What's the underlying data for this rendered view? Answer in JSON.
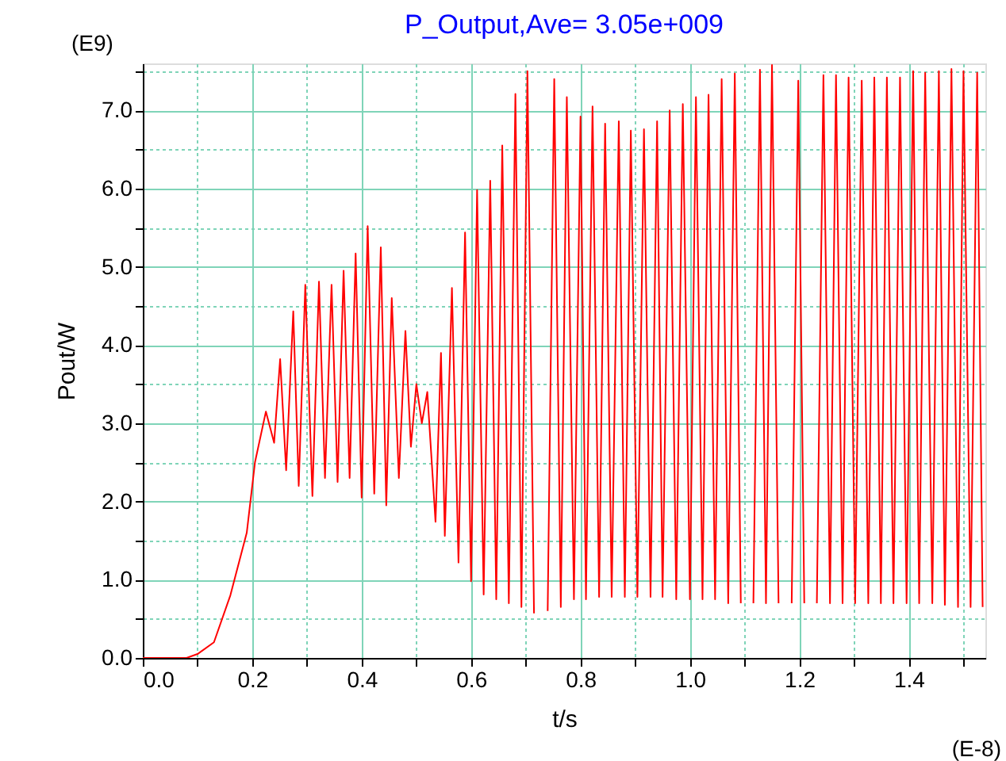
{
  "chart_data": {
    "type": "line",
    "title": "P_Output,Ave= 3.05e+009",
    "xlabel": "t/s",
    "ylabel": "Pout/W",
    "annotations": [
      "(E9)",
      "(E-8)"
    ],
    "xlim": [
      0,
      1.54
    ],
    "ylim": [
      0,
      7.6
    ],
    "xticks": [
      {
        "value": 0,
        "label": "0.0"
      },
      {
        "value": 0.1,
        "label": null
      },
      {
        "value": 0.2,
        "label": "0.2"
      },
      {
        "value": 0.3,
        "label": null
      },
      {
        "value": 0.4,
        "label": "0.4"
      },
      {
        "value": 0.5,
        "label": null
      },
      {
        "value": 0.6,
        "label": "0.6"
      },
      {
        "value": 0.7,
        "label": null
      },
      {
        "value": 0.8,
        "label": "0.8"
      },
      {
        "value": 0.9,
        "label": null
      },
      {
        "value": 1,
        "label": "1.0"
      },
      {
        "value": 1.1,
        "label": null
      },
      {
        "value": 1.2,
        "label": "1.2"
      },
      {
        "value": 1.3,
        "label": null
      },
      {
        "value": 1.4,
        "label": "1.4"
      },
      {
        "value": 1.5,
        "label": null
      }
    ],
    "yticks": [
      {
        "value": 0,
        "label": "0.0"
      },
      {
        "value": 0.5,
        "label": null
      },
      {
        "value": 1,
        "label": "1.0"
      },
      {
        "value": 1.5,
        "label": null
      },
      {
        "value": 2,
        "label": "2.0"
      },
      {
        "value": 2.5,
        "label": null
      },
      {
        "value": 3,
        "label": "3.0"
      },
      {
        "value": 3.5,
        "label": null
      },
      {
        "value": 4,
        "label": "4.0"
      },
      {
        "value": 4.5,
        "label": null
      },
      {
        "value": 5,
        "label": "5.0"
      },
      {
        "value": 5.5,
        "label": null
      },
      {
        "value": 6,
        "label": "6.0"
      },
      {
        "value": 6.5,
        "label": null
      },
      {
        "value": 7,
        "label": "7.0"
      },
      {
        "value": 7.5,
        "label": null
      }
    ],
    "grid": true,
    "legend": false,
    "marker": "none",
    "line_style": "solid",
    "series": [
      {
        "color": "#ff0000",
        "x": [
          0,
          0.08,
          0.1,
          0.13,
          0.16,
          0.19,
          0.205,
          0.225,
          0.24,
          0.251,
          0.262,
          0.275,
          0.285,
          0.297,
          0.31,
          0.322,
          0.333,
          0.345,
          0.356,
          0.367,
          0.378,
          0.389,
          0.4,
          0.411,
          0.423,
          0.435,
          0.445,
          0.455,
          0.468,
          0.48,
          0.49,
          0.5,
          0.51,
          0.52,
          0.535,
          0.545,
          0.552,
          0.565,
          0.577,
          0.589,
          0.6,
          0.611,
          0.623,
          0.635,
          0.646,
          0.657,
          0.669,
          0.681,
          0.692,
          0.703,
          0.715,
          0.727,
          0.74,
          0.752,
          0.764,
          0.775,
          0.788,
          0.8,
          0.81,
          0.822,
          0.834,
          0.845,
          0.857,
          0.87,
          0.881,
          0.892,
          0.904,
          0.916,
          0.928,
          0.94,
          0.95,
          0.963,
          0.975,
          0.987,
          1.0,
          1.011,
          1.023,
          1.034,
          1.046,
          1.058,
          1.07,
          1.082,
          1.093,
          1.104,
          1.116,
          1.128,
          1.139,
          1.15,
          1.162,
          1.174,
          1.186,
          1.198,
          1.209,
          1.22,
          1.232,
          1.244,
          1.256,
          1.267,
          1.279,
          1.29,
          1.302,
          1.314,
          1.326,
          1.337,
          1.349,
          1.36,
          1.372,
          1.384,
          1.396,
          1.408,
          1.419,
          1.43,
          1.443,
          1.455,
          1.466,
          1.478,
          1.49,
          1.5,
          1.513,
          1.525,
          1.535
        ],
        "values": [
          0,
          0,
          0.05,
          0.2,
          0.8,
          1.6,
          2.5,
          3.15,
          2.75,
          3.82,
          2.4,
          4.43,
          2.2,
          4.77,
          2.07,
          4.81,
          2.3,
          4.77,
          2.25,
          4.95,
          2.3,
          5.17,
          2.05,
          5.52,
          2.1,
          5.25,
          1.95,
          4.6,
          2.3,
          4.18,
          2.7,
          3.5,
          3.0,
          3.4,
          1.74,
          3.9,
          1.56,
          4.73,
          1.22,
          5.44,
          0.98,
          5.98,
          0.81,
          6.1,
          0.75,
          6.55,
          0.7,
          7.21,
          0.65,
          7.5,
          0.57,
          null,
          0.6,
          7.4,
          0.65,
          7.17,
          0.75,
          6.92,
          0.75,
          7.05,
          0.78,
          6.83,
          0.78,
          6.86,
          0.78,
          6.74,
          0.78,
          6.76,
          0.78,
          6.86,
          0.78,
          7.0,
          0.75,
          7.08,
          0.75,
          7.17,
          0.75,
          7.2,
          0.75,
          7.4,
          0.7,
          7.47,
          0.7,
          null,
          0.7,
          7.52,
          0.7,
          7.58,
          0.7,
          null,
          0.7,
          7.38,
          0.7,
          null,
          0.7,
          7.45,
          0.7,
          7.45,
          0.7,
          7.42,
          0.7,
          7.38,
          0.7,
          7.42,
          0.7,
          7.42,
          0.7,
          7.42,
          0.7,
          7.5,
          0.7,
          7.48,
          0.7,
          7.5,
          0.68,
          7.53,
          0.65,
          7.5,
          0.65,
          7.48,
          0.65
        ]
      }
    ]
  }
}
